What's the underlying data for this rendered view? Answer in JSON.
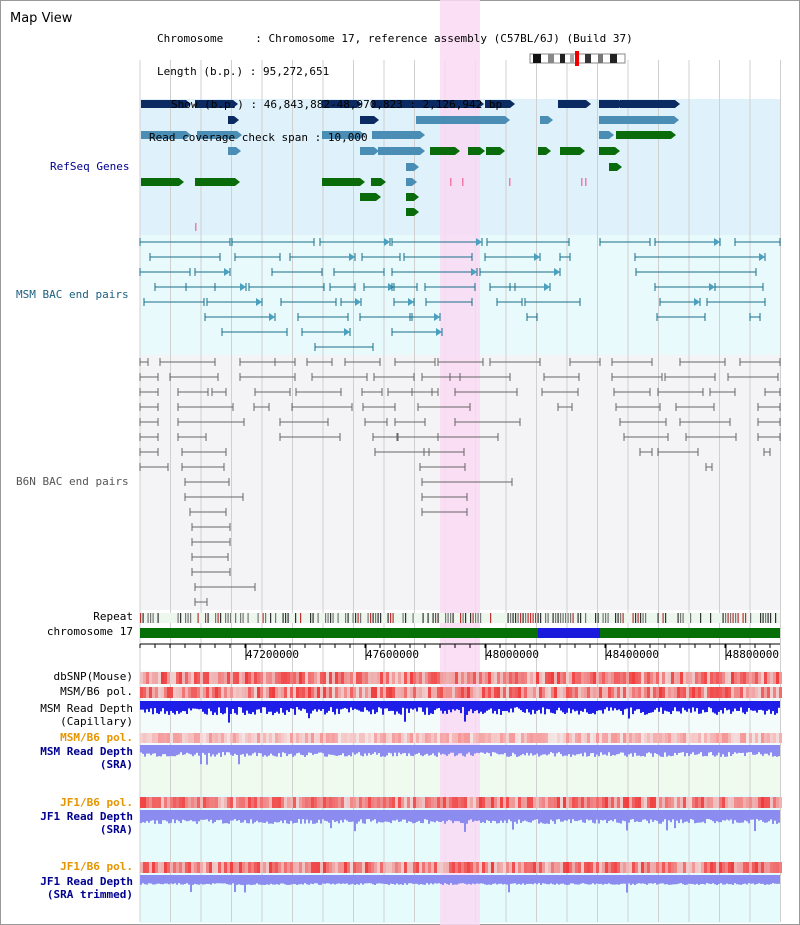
{
  "title": "Map View",
  "info": {
    "chromosome_key": "Chromosome",
    "chromosome_val": "Chromosome 17, reference assembly (C57BL/6J) (Build 37)",
    "length_key": "Length (b.p.)",
    "length_val": "95,272,651",
    "show_key": "Show (b.p.)",
    "show_val": "46,843,882-48,970,823 : 2,126,942 bp",
    "span_key": "Read coverage check span",
    "span_val": "10,000"
  },
  "tracks": {
    "refseq": "RefSeq Genes",
    "msm_bac": "MSM BAC end pairs",
    "b6n_bac": "B6N BAC end pairs",
    "repeat": "Repeat",
    "chromosome": "chromosome 17",
    "dbsnp": "dbSNP(Mouse)",
    "msm_pol": "MSM/B6 pol.",
    "msm_depth_cap_1": "MSM Read Depth",
    "msm_depth_cap_2": "(Capillary)",
    "msm_pol2": "MSM/B6 pol.",
    "msm_depth_sra_1": "MSM Read Depth",
    "msm_depth_sra_2": "(SRA)",
    "jf1_pol": "JF1/B6 pol.",
    "jf1_depth_1": "JF1 Read Depth",
    "jf1_depth_2": "(SRA)",
    "jf1_pol2": "JF1/B6 pol.",
    "jf1_trim_1": "JF1 Read Depth",
    "jf1_trim_2": "(SRA trimmed)"
  },
  "ruler": {
    "ticks": [
      "47200000",
      "47600000",
      "48000000",
      "48400000",
      "48800000"
    ]
  },
  "colors": {
    "refseq_bg": "#dff1fb",
    "msm_bg": "#e8fafb",
    "b6n_bg": "#f4f4f7",
    "highlight": "#f9d9f3",
    "gene_dark": "#0b2a62",
    "gene_mid": "#4a8db5",
    "gene_green": "#0a6b0a",
    "bac_msm": "#1a6f89",
    "bac_b6n": "#666666",
    "depth_blue": "#1e1ee8",
    "depth_light": "#8c8cf0",
    "snp_red": "#f06a6a",
    "chrom_green": "#067006",
    "label_orange": "#e69500",
    "label_navy": "#000090"
  }
}
